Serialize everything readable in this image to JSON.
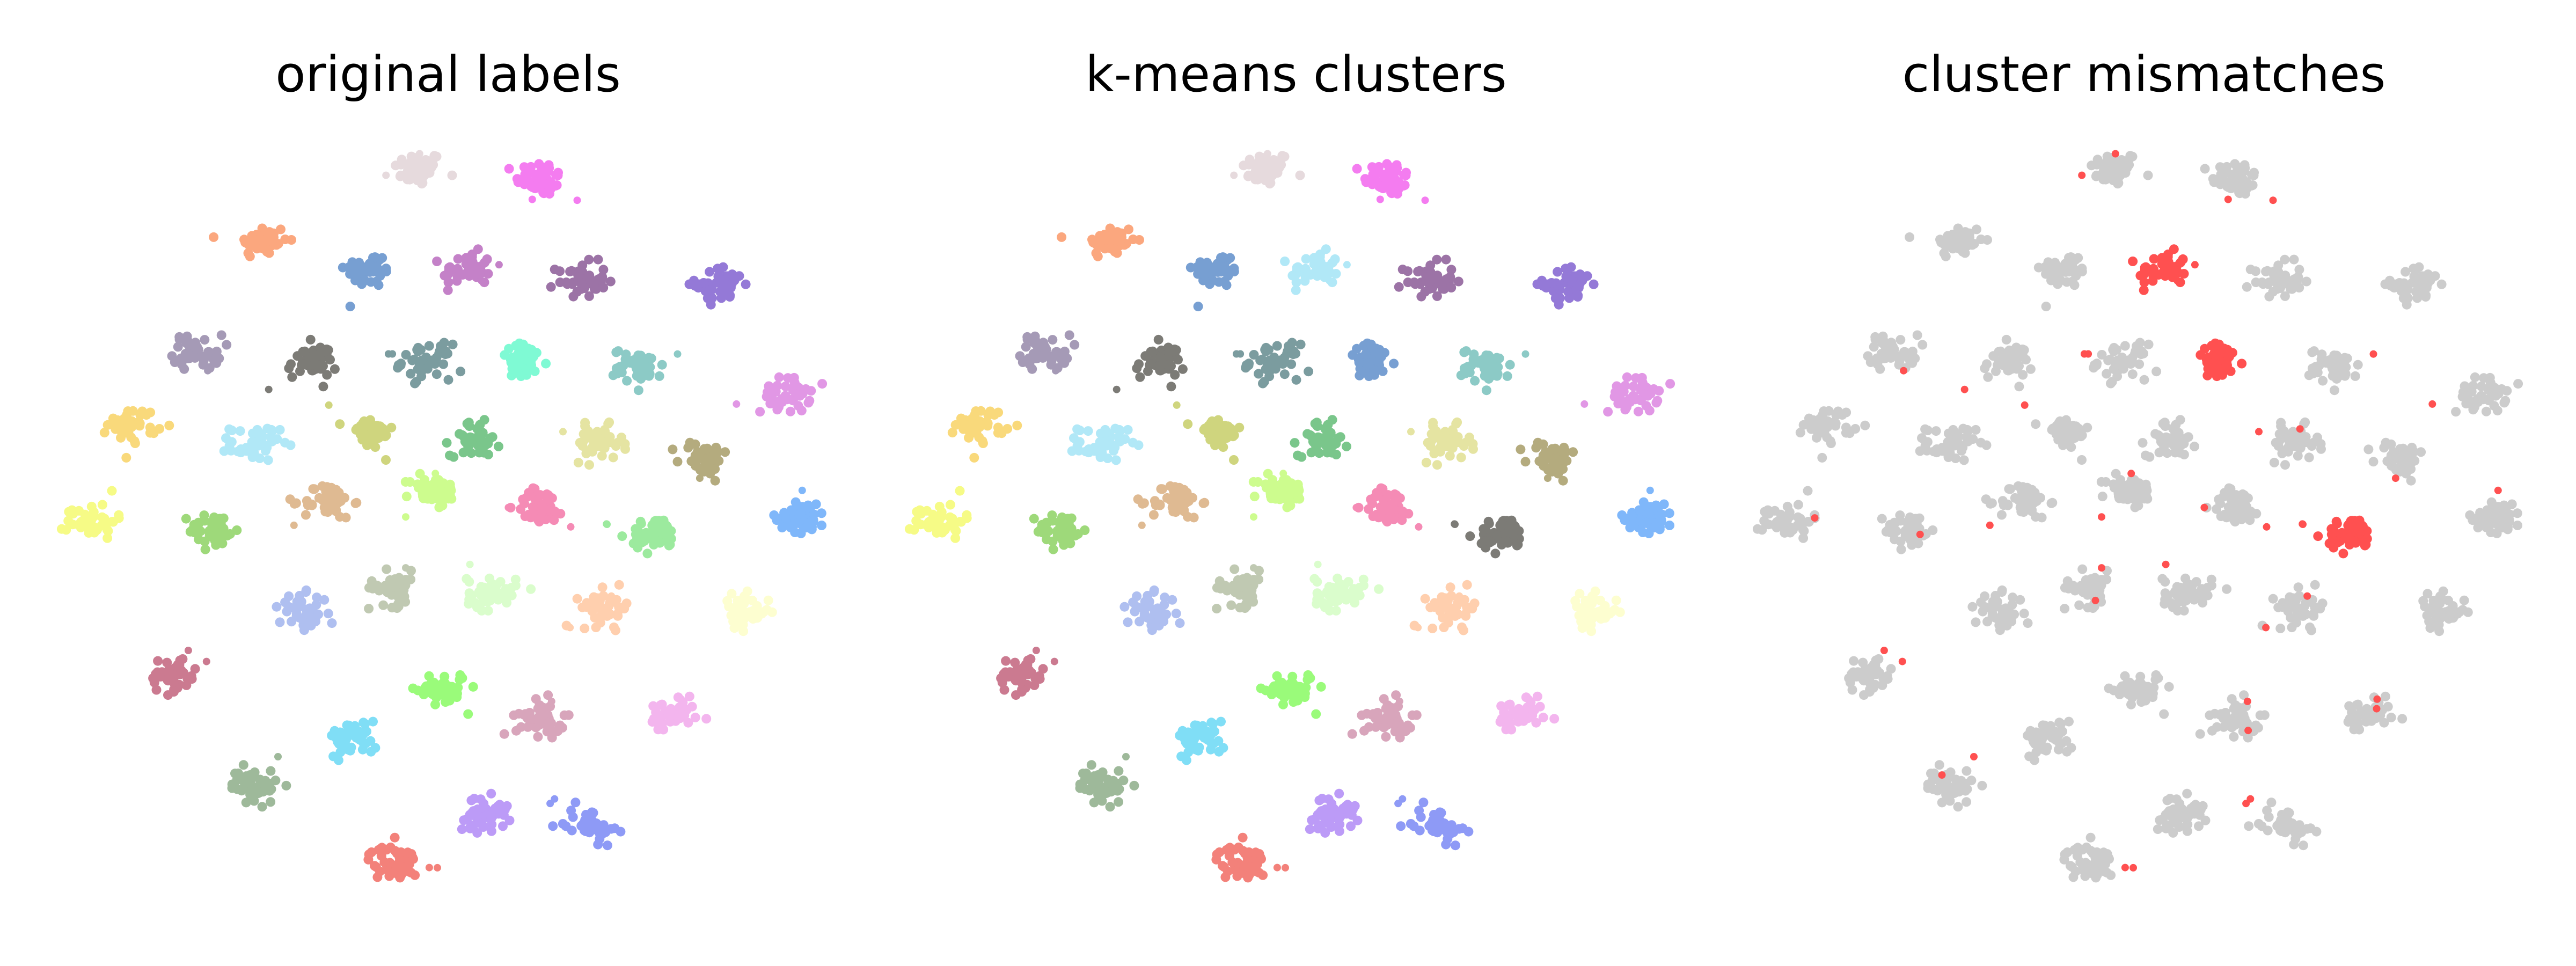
{
  "chart_data": [
    {
      "type": "scatter",
      "title": "original labels",
      "axes": "off",
      "grid": false,
      "legend": "none",
      "clusters": [
        {
          "x": 2.6,
          "y": 4.85,
          "color": "#e6dadd"
        },
        {
          "x": 3.35,
          "y": 4.75,
          "color": "#f47cf0"
        },
        {
          "x": 1.65,
          "y": 4.1,
          "color": "#fba77e"
        },
        {
          "x": 2.3,
          "y": 3.8,
          "color": "#779fd2"
        },
        {
          "x": 2.9,
          "y": 3.8,
          "color": "#c481c8"
        },
        {
          "x": 3.6,
          "y": 3.7,
          "color": "#9c73a6"
        },
        {
          "x": 4.45,
          "y": 3.65,
          "color": "#9479d7"
        },
        {
          "x": 1.25,
          "y": 2.95,
          "color": "#a59ab6"
        },
        {
          "x": 1.95,
          "y": 2.85,
          "color": "#7c7b76"
        },
        {
          "x": 2.65,
          "y": 2.85,
          "color": "#7b9c9f"
        },
        {
          "x": 3.25,
          "y": 2.85,
          "color": "#7ffad4"
        },
        {
          "x": 3.95,
          "y": 2.8,
          "color": "#8ccac6"
        },
        {
          "x": 4.85,
          "y": 2.5,
          "color": "#e197e5"
        },
        {
          "x": 0.85,
          "y": 2.2,
          "color": "#f9d97b"
        },
        {
          "x": 1.6,
          "y": 2.0,
          "color": "#b1e8f7"
        },
        {
          "x": 2.3,
          "y": 2.1,
          "color": "#cfd57e"
        },
        {
          "x": 2.95,
          "y": 2.05,
          "color": "#7ac68b"
        },
        {
          "x": 3.7,
          "y": 2.0,
          "color": "#e5e4a2"
        },
        {
          "x": 4.35,
          "y": 1.85,
          "color": "#b4ab7e"
        },
        {
          "x": 0.6,
          "y": 1.2,
          "color": "#f6fb86"
        },
        {
          "x": 1.35,
          "y": 1.1,
          "color": "#9ed97a"
        },
        {
          "x": 2.05,
          "y": 1.4,
          "color": "#dfba92"
        },
        {
          "x": 2.7,
          "y": 1.5,
          "color": "#cdfc8e"
        },
        {
          "x": 3.35,
          "y": 1.35,
          "color": "#f58bb5"
        },
        {
          "x": 4.05,
          "y": 1.05,
          "color": "#9cea9e"
        },
        {
          "x": 4.95,
          "y": 1.25,
          "color": "#7fb7fa"
        },
        {
          "x": 2.45,
          "y": 0.5,
          "color": "#c0c9b2"
        },
        {
          "x": 3.05,
          "y": 0.45,
          "color": "#dafdcc"
        },
        {
          "x": 3.75,
          "y": 0.3,
          "color": "#ffcfae"
        },
        {
          "x": 4.6,
          "y": 0.25,
          "color": "#fdfed0"
        },
        {
          "x": 1.9,
          "y": 0.25,
          "color": "#afbff0"
        },
        {
          "x": 1.1,
          "y": -0.4,
          "color": "#cb7a90"
        },
        {
          "x": 2.75,
          "y": -0.55,
          "color": "#9afb7a"
        },
        {
          "x": 3.35,
          "y": -0.85,
          "color": "#d8a5bb"
        },
        {
          "x": 4.15,
          "y": -0.85,
          "color": "#f3b5ee"
        },
        {
          "x": 2.2,
          "y": -1.05,
          "color": "#80def6"
        },
        {
          "x": 1.6,
          "y": -1.55,
          "color": "#9eb99a"
        },
        {
          "x": 3.0,
          "y": -1.85,
          "color": "#bc9bf7"
        },
        {
          "x": 3.65,
          "y": -1.95,
          "color": "#8e9af6"
        },
        {
          "x": 2.45,
          "y": -2.35,
          "color": "#f3817a"
        }
      ]
    },
    {
      "type": "scatter",
      "title": "k-means clusters",
      "axes": "off",
      "grid": false,
      "legend": "none",
      "clusters": [
        {
          "x": 2.6,
          "y": 4.85,
          "color": "#e6dadd"
        },
        {
          "x": 3.35,
          "y": 4.75,
          "color": "#f47cf0"
        },
        {
          "x": 1.65,
          "y": 4.1,
          "color": "#fba77e"
        },
        {
          "x": 2.3,
          "y": 3.8,
          "color": "#779fd2"
        },
        {
          "x": 2.9,
          "y": 3.8,
          "color": "#b1e8f7"
        },
        {
          "x": 3.6,
          "y": 3.7,
          "color": "#9c73a6"
        },
        {
          "x": 4.45,
          "y": 3.65,
          "color": "#9479d7"
        },
        {
          "x": 1.25,
          "y": 2.95,
          "color": "#a59ab6"
        },
        {
          "x": 1.95,
          "y": 2.85,
          "color": "#7c7b76"
        },
        {
          "x": 2.65,
          "y": 2.85,
          "color": "#7b9c9f"
        },
        {
          "x": 3.25,
          "y": 2.85,
          "color": "#779fd2"
        },
        {
          "x": 3.95,
          "y": 2.8,
          "color": "#8ccac6"
        },
        {
          "x": 4.85,
          "y": 2.5,
          "color": "#e197e5"
        },
        {
          "x": 0.85,
          "y": 2.2,
          "color": "#f9d97b"
        },
        {
          "x": 1.6,
          "y": 2.0,
          "color": "#b1e8f7"
        },
        {
          "x": 2.3,
          "y": 2.1,
          "color": "#cfd57e"
        },
        {
          "x": 2.95,
          "y": 2.05,
          "color": "#7ac68b"
        },
        {
          "x": 3.7,
          "y": 2.0,
          "color": "#e5e4a2"
        },
        {
          "x": 4.35,
          "y": 1.85,
          "color": "#b4ab7e"
        },
        {
          "x": 0.6,
          "y": 1.2,
          "color": "#f6fb86"
        },
        {
          "x": 1.35,
          "y": 1.1,
          "color": "#9ed97a"
        },
        {
          "x": 2.05,
          "y": 1.4,
          "color": "#dfba92"
        },
        {
          "x": 2.7,
          "y": 1.5,
          "color": "#cdfc8e"
        },
        {
          "x": 3.35,
          "y": 1.35,
          "color": "#f58bb5"
        },
        {
          "x": 4.05,
          "y": 1.05,
          "color": "#7c7b76"
        },
        {
          "x": 4.95,
          "y": 1.25,
          "color": "#7fb7fa"
        },
        {
          "x": 2.45,
          "y": 0.5,
          "color": "#c0c9b2"
        },
        {
          "x": 3.05,
          "y": 0.45,
          "color": "#dafdcc"
        },
        {
          "x": 3.75,
          "y": 0.3,
          "color": "#ffcfae"
        },
        {
          "x": 4.6,
          "y": 0.25,
          "color": "#fdfed0"
        },
        {
          "x": 1.9,
          "y": 0.25,
          "color": "#afbff0"
        },
        {
          "x": 1.1,
          "y": -0.4,
          "color": "#cb7a90"
        },
        {
          "x": 2.75,
          "y": -0.55,
          "color": "#9afb7a"
        },
        {
          "x": 3.35,
          "y": -0.85,
          "color": "#d8a5bb"
        },
        {
          "x": 4.15,
          "y": -0.85,
          "color": "#f3b5ee"
        },
        {
          "x": 2.2,
          "y": -1.05,
          "color": "#80def6"
        },
        {
          "x": 1.6,
          "y": -1.55,
          "color": "#9eb99a"
        },
        {
          "x": 3.0,
          "y": -1.85,
          "color": "#bc9bf7"
        },
        {
          "x": 3.65,
          "y": -1.95,
          "color": "#8e9af6"
        },
        {
          "x": 2.45,
          "y": -2.35,
          "color": "#f3817a"
        }
      ]
    },
    {
      "type": "scatter",
      "title": "cluster mismatches",
      "axes": "off",
      "grid": false,
      "legend": "none",
      "match_color": "#cccccc",
      "mismatch_color": "#ff5050",
      "clusters": [
        {
          "x": 2.6,
          "y": 4.85,
          "mismatch": false
        },
        {
          "x": 3.35,
          "y": 4.75,
          "mismatch": false
        },
        {
          "x": 1.65,
          "y": 4.1,
          "mismatch": false
        },
        {
          "x": 2.3,
          "y": 3.8,
          "mismatch": false
        },
        {
          "x": 2.9,
          "y": 3.8,
          "mismatch": true
        },
        {
          "x": 3.6,
          "y": 3.7,
          "mismatch": false
        },
        {
          "x": 4.45,
          "y": 3.65,
          "mismatch": false
        },
        {
          "x": 1.25,
          "y": 2.95,
          "mismatch": false
        },
        {
          "x": 1.95,
          "y": 2.85,
          "mismatch": false
        },
        {
          "x": 2.65,
          "y": 2.85,
          "mismatch": false
        },
        {
          "x": 3.25,
          "y": 2.85,
          "mismatch": true
        },
        {
          "x": 3.95,
          "y": 2.8,
          "mismatch": false
        },
        {
          "x": 4.85,
          "y": 2.5,
          "mismatch": false
        },
        {
          "x": 0.85,
          "y": 2.2,
          "mismatch": false
        },
        {
          "x": 1.6,
          "y": 2.0,
          "mismatch": false
        },
        {
          "x": 2.3,
          "y": 2.1,
          "mismatch": false
        },
        {
          "x": 2.95,
          "y": 2.05,
          "mismatch": false
        },
        {
          "x": 3.7,
          "y": 2.0,
          "mismatch": false
        },
        {
          "x": 4.35,
          "y": 1.85,
          "mismatch": false
        },
        {
          "x": 0.6,
          "y": 1.2,
          "mismatch": false
        },
        {
          "x": 1.35,
          "y": 1.1,
          "mismatch": false
        },
        {
          "x": 2.05,
          "y": 1.4,
          "mismatch": false
        },
        {
          "x": 2.7,
          "y": 1.5,
          "mismatch": false
        },
        {
          "x": 3.35,
          "y": 1.35,
          "mismatch": false
        },
        {
          "x": 4.05,
          "y": 1.05,
          "mismatch": true
        },
        {
          "x": 4.95,
          "y": 1.25,
          "mismatch": false
        },
        {
          "x": 2.45,
          "y": 0.5,
          "mismatch": false
        },
        {
          "x": 3.05,
          "y": 0.45,
          "mismatch": false
        },
        {
          "x": 3.75,
          "y": 0.3,
          "mismatch": false
        },
        {
          "x": 4.6,
          "y": 0.25,
          "mismatch": false
        },
        {
          "x": 1.9,
          "y": 0.25,
          "mismatch": false
        },
        {
          "x": 1.1,
          "y": -0.4,
          "mismatch": false
        },
        {
          "x": 2.75,
          "y": -0.55,
          "mismatch": false
        },
        {
          "x": 3.35,
          "y": -0.85,
          "mismatch": false
        },
        {
          "x": 4.15,
          "y": -0.85,
          "mismatch": false
        },
        {
          "x": 2.2,
          "y": -1.05,
          "mismatch": false
        },
        {
          "x": 1.6,
          "y": -1.55,
          "mismatch": false
        },
        {
          "x": 3.0,
          "y": -1.85,
          "mismatch": false
        },
        {
          "x": 3.65,
          "y": -1.95,
          "mismatch": false
        },
        {
          "x": 2.45,
          "y": -2.35,
          "mismatch": false
        }
      ]
    }
  ]
}
